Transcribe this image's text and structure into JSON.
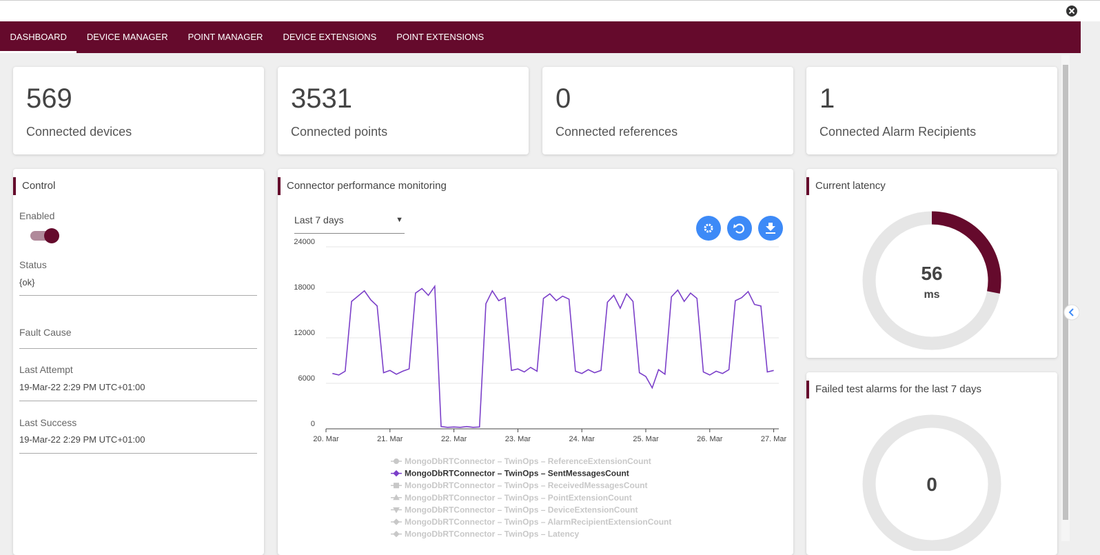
{
  "nav": {
    "tabs": [
      "DASHBOARD",
      "DEVICE MANAGER",
      "POINT MANAGER",
      "DEVICE EXTENSIONS",
      "POINT EXTENSIONS"
    ],
    "active": 0
  },
  "stats": [
    {
      "value": 569,
      "label": "Connected devices"
    },
    {
      "value": 3531,
      "label": "Connected points"
    },
    {
      "value": 0,
      "label": "Connected references"
    },
    {
      "value": 1,
      "label": "Connected Alarm Recipients"
    }
  ],
  "control": {
    "title": "Control",
    "enabled_label": "Enabled",
    "enabled": true,
    "fields": [
      {
        "label": "Status",
        "value": "{ok}"
      },
      {
        "label": "Fault Cause"
      },
      {
        "label": "Last Attempt",
        "value": "19-Mar-22 2:29 PM UTC+01:00"
      },
      {
        "label": "Last Success",
        "value": "19-Mar-22 2:29 PM UTC+01:00"
      }
    ]
  },
  "chart_data": [
    {
      "type": "line",
      "title": "Connector performance monitoring",
      "range_selector": "Last 7 days",
      "grid": true,
      "x": [
        20.1,
        20.2,
        20.3,
        20.4,
        20.5,
        20.6,
        20.7,
        20.8,
        20.9,
        21.0,
        21.1,
        21.2,
        21.3,
        21.4,
        21.5,
        21.6,
        21.7,
        21.8,
        21.9,
        22.0,
        22.1,
        22.2,
        22.3,
        22.4,
        22.5,
        22.6,
        22.7,
        22.8,
        22.9,
        23.0,
        23.1,
        23.2,
        23.3,
        23.4,
        23.5,
        23.6,
        23.7,
        23.8,
        23.9,
        24.0,
        24.1,
        24.2,
        24.3,
        24.4,
        24.5,
        24.6,
        24.7,
        24.8,
        24.9,
        25.0,
        25.1,
        25.2,
        25.3,
        25.4,
        25.5,
        25.6,
        25.7,
        25.8,
        25.9,
        26.0,
        26.1,
        26.2,
        26.3,
        26.4,
        26.5,
        26.6,
        26.7,
        26.8,
        26.9,
        27.0
      ],
      "xlim": [
        20,
        27.08
      ],
      "xticks": [
        {
          "value": 20,
          "label": "20. Mar"
        },
        {
          "value": 21,
          "label": "21. Mar"
        },
        {
          "value": 22,
          "label": "22. Mar"
        },
        {
          "value": 23,
          "label": "23. Mar"
        },
        {
          "value": 24,
          "label": "24. Mar"
        },
        {
          "value": 25,
          "label": "25. Mar"
        },
        {
          "value": 26,
          "label": "26. Mar"
        },
        {
          "value": 27,
          "label": "27. Mar"
        }
      ],
      "ylim": [
        0,
        24000
      ],
      "yticks": [
        0,
        6000,
        12000,
        18000,
        24000
      ],
      "series": [
        {
          "name": "MongoDbRTConnector – TwinOps – ReferenceExtensionCount",
          "marker": "circle",
          "visible": false
        },
        {
          "name": "MongoDbRTConnector – TwinOps – SentMessagesCount",
          "marker": "diamond",
          "visible": true,
          "color": "#7b3fc9",
          "values": [
            7300,
            7100,
            7600,
            16800,
            17500,
            18200,
            17000,
            16200,
            7400,
            7700,
            7200,
            7600,
            7900,
            17900,
            18500,
            17600,
            18800,
            300,
            200,
            250,
            200,
            300,
            200,
            250,
            16500,
            18200,
            16900,
            17300,
            7700,
            7900,
            7500,
            8100,
            7600,
            17200,
            17800,
            16900,
            17500,
            17100,
            7600,
            7300,
            7800,
            7400,
            7700,
            16700,
            17600,
            15900,
            17800,
            16800,
            7400,
            6900,
            5400,
            7800,
            7200,
            17400,
            18300,
            16800,
            17900,
            17200,
            7500,
            7100,
            7600,
            7300,
            7800,
            16900,
            17300,
            18100,
            16400,
            16200,
            7500,
            7700
          ]
        },
        {
          "name": "MongoDbRTConnector – TwinOps – ReceivedMessagesCount",
          "marker": "square",
          "visible": false
        },
        {
          "name": "MongoDbRTConnector – TwinOps – PointExtensionCount",
          "marker": "triangle",
          "visible": false
        },
        {
          "name": "MongoDbRTConnector – TwinOps – DeviceExtensionCount",
          "marker": "triangle-down",
          "visible": false
        },
        {
          "name": "MongoDbRTConnector – TwinOps – AlarmRecipientExtensionCount",
          "marker": "diamond",
          "visible": false
        },
        {
          "name": "MongoDbRTConnector – TwinOps – Latency",
          "marker": "diamond",
          "visible": false
        }
      ]
    },
    {
      "type": "gauge",
      "title": "Current latency",
      "value": 56,
      "unit": "ms",
      "ylim": [
        0,
        200
      ],
      "color": "#650a2c"
    },
    {
      "type": "gauge",
      "title": "Failed test alarms for the last 7 days",
      "value": 0,
      "ylim": [
        0,
        200
      ],
      "color": "#650a2c"
    }
  ]
}
